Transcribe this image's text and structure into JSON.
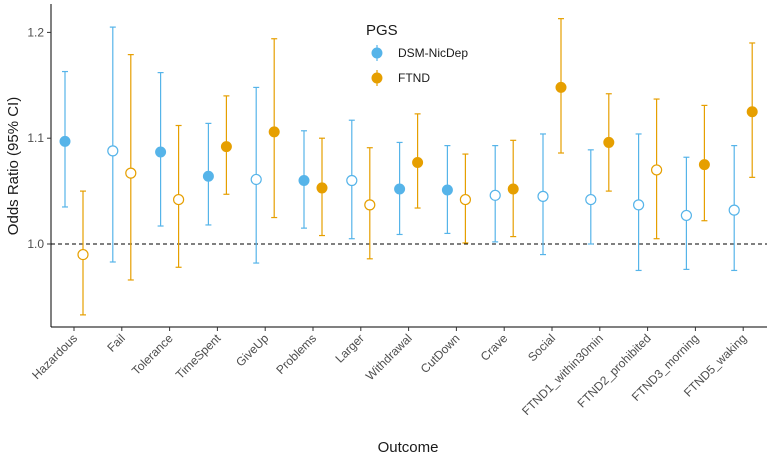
{
  "chart_data": {
    "type": "scatter",
    "subtype": "point-range (odds ratio with 95% CI)",
    "title": "",
    "xlabel": "Outcome",
    "ylabel": "Odds Ratio (95% CI)",
    "ylim": [
      0.925,
      1.225
    ],
    "yticks": [
      1.0,
      1.1,
      1.2
    ],
    "ytick_labels": [
      "1.0",
      "1.1",
      "1.2"
    ],
    "reference_line": 1.0,
    "legend": {
      "title": "PGS",
      "placement": "top-center"
    },
    "categories": [
      "Hazardous",
      "Fail",
      "Tolerance",
      "TimeSpent",
      "GiveUp",
      "Problems",
      "Larger",
      "Withdrawal",
      "CutDown",
      "Crave",
      "Social",
      "FTND1_within30min",
      "FTND2_prohibited",
      "FTND3_morning",
      "FTND5_waking"
    ],
    "series": [
      {
        "name": "DSM-NicDep",
        "color": "#56B4E9",
        "estimate": [
          1.097,
          1.088,
          1.087,
          1.064,
          1.061,
          1.06,
          1.06,
          1.052,
          1.051,
          1.046,
          1.045,
          1.042,
          1.037,
          1.027,
          1.032
        ],
        "lower": [
          1.035,
          0.983,
          1.017,
          1.018,
          0.982,
          1.015,
          1.005,
          1.009,
          1.01,
          1.002,
          0.99,
          1.0,
          0.975,
          0.976,
          0.975
        ],
        "upper": [
          1.163,
          1.205,
          1.162,
          1.114,
          1.148,
          1.107,
          1.117,
          1.096,
          1.093,
          1.093,
          1.104,
          1.089,
          1.104,
          1.082,
          1.093
        ],
        "significant": [
          true,
          false,
          true,
          true,
          false,
          true,
          false,
          true,
          true,
          false,
          false,
          false,
          false,
          false,
          false
        ]
      },
      {
        "name": "FTND",
        "color": "#E69F00",
        "estimate": [
          0.99,
          1.067,
          1.042,
          1.092,
          1.106,
          1.053,
          1.037,
          1.077,
          1.042,
          1.052,
          1.148,
          1.096,
          1.07,
          1.075,
          1.125
        ],
        "lower": [
          0.933,
          0.966,
          0.978,
          1.047,
          1.025,
          1.008,
          0.986,
          1.034,
          1.001,
          1.007,
          1.086,
          1.05,
          1.005,
          1.022,
          1.063
        ],
        "upper": [
          1.05,
          1.179,
          1.112,
          1.14,
          1.194,
          1.1,
          1.091,
          1.123,
          1.085,
          1.098,
          1.213,
          1.142,
          1.137,
          1.131,
          1.19
        ],
        "significant": [
          false,
          false,
          false,
          true,
          true,
          true,
          false,
          true,
          false,
          true,
          true,
          true,
          false,
          true,
          true
        ]
      }
    ]
  }
}
